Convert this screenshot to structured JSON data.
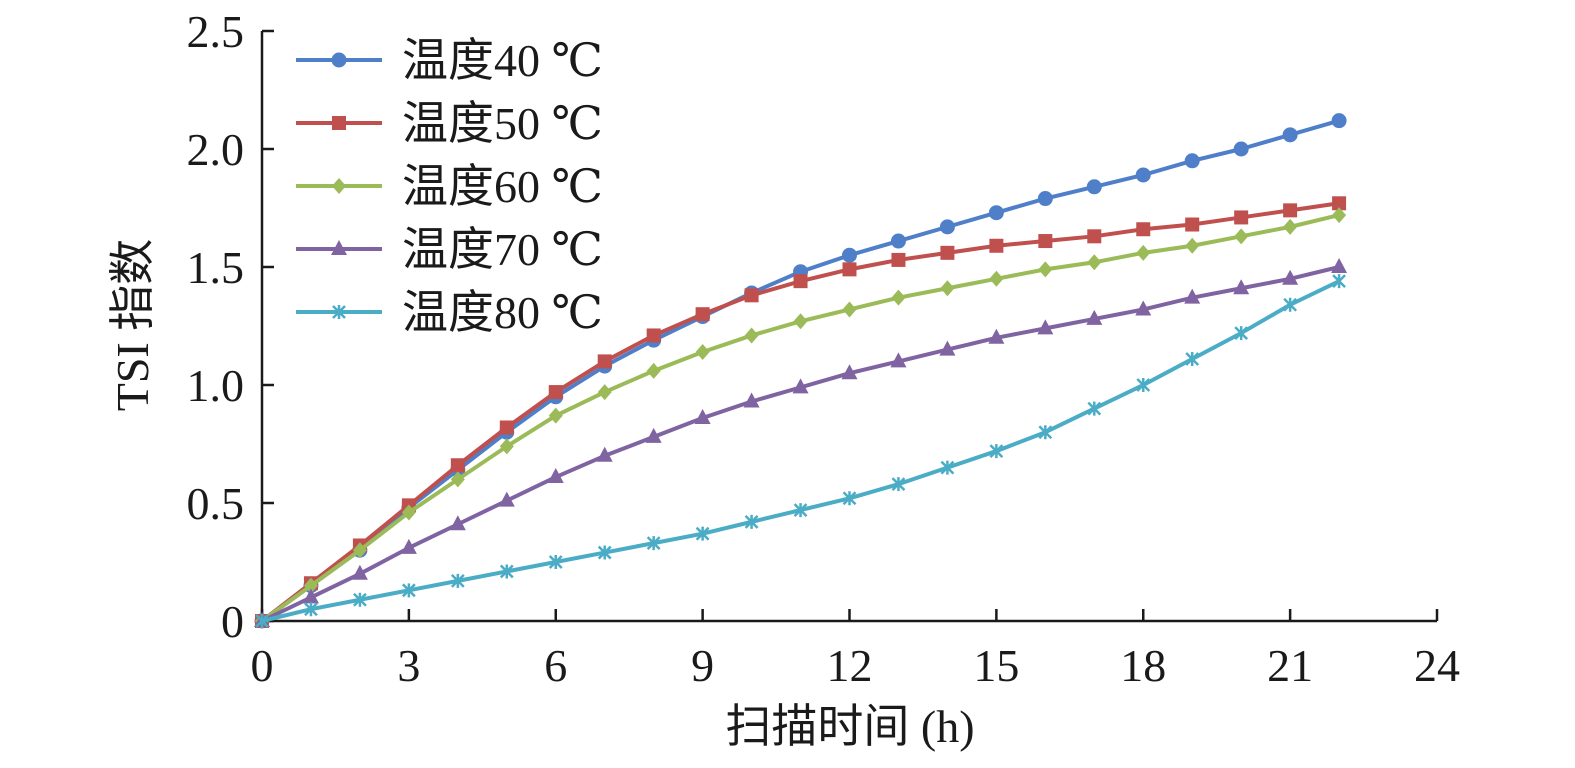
{
  "chart_data": {
    "type": "line",
    "title": "",
    "xlabel": "扫描时间 (h)",
    "ylabel": "TSI 指数",
    "xlim": [
      0,
      24
    ],
    "ylim": [
      0,
      2.5
    ],
    "xticks": [
      0,
      3,
      6,
      9,
      12,
      15,
      18,
      21,
      24
    ],
    "xtick_labels": [
      "0",
      "3",
      "6",
      "9",
      "12",
      "15",
      "18",
      "21",
      "24"
    ],
    "yticks": [
      0,
      0.5,
      1.0,
      1.5,
      2.0,
      2.5
    ],
    "ytick_labels": [
      "0",
      "0.5",
      "1.0",
      "1.5",
      "2.0",
      "2.5"
    ],
    "grid": false,
    "legend_position": "top-left",
    "x": [
      0,
      1,
      2,
      3,
      4,
      5,
      6,
      7,
      8,
      9,
      10,
      11,
      12,
      13,
      14,
      15,
      16,
      17,
      18,
      19,
      20,
      21,
      22
    ],
    "series": [
      {
        "name": "温度40 ℃",
        "color": "#4f7fc9",
        "marker": "circle",
        "values": [
          0,
          0.15,
          0.3,
          0.48,
          0.64,
          0.8,
          0.95,
          1.08,
          1.19,
          1.29,
          1.39,
          1.48,
          1.55,
          1.61,
          1.67,
          1.73,
          1.79,
          1.84,
          1.89,
          1.95,
          2.0,
          2.06,
          2.12
        ]
      },
      {
        "name": "温度50 ℃",
        "color": "#c0504d",
        "marker": "square",
        "values": [
          0,
          0.16,
          0.32,
          0.49,
          0.66,
          0.82,
          0.97,
          1.1,
          1.21,
          1.3,
          1.38,
          1.44,
          1.49,
          1.53,
          1.56,
          1.59,
          1.61,
          1.63,
          1.66,
          1.68,
          1.71,
          1.74,
          1.77
        ]
      },
      {
        "name": "温度60 ℃",
        "color": "#9bbb59",
        "marker": "diamond",
        "values": [
          0,
          0.15,
          0.3,
          0.46,
          0.6,
          0.74,
          0.87,
          0.97,
          1.06,
          1.14,
          1.21,
          1.27,
          1.32,
          1.37,
          1.41,
          1.45,
          1.49,
          1.52,
          1.56,
          1.59,
          1.63,
          1.67,
          1.72
        ]
      },
      {
        "name": "温度70 ℃",
        "color": "#8064a2",
        "marker": "triangle",
        "values": [
          0,
          0.1,
          0.2,
          0.31,
          0.41,
          0.51,
          0.61,
          0.7,
          0.78,
          0.86,
          0.93,
          0.99,
          1.05,
          1.1,
          1.15,
          1.2,
          1.24,
          1.28,
          1.32,
          1.37,
          1.41,
          1.45,
          1.5
        ]
      },
      {
        "name": "温度80 ℃",
        "color": "#4bacc6",
        "marker": "x",
        "values": [
          0,
          0.05,
          0.09,
          0.13,
          0.17,
          0.21,
          0.25,
          0.29,
          0.33,
          0.37,
          0.42,
          0.47,
          0.52,
          0.58,
          0.65,
          0.72,
          0.8,
          0.9,
          1.0,
          1.11,
          1.22,
          1.34,
          1.44
        ]
      }
    ]
  }
}
